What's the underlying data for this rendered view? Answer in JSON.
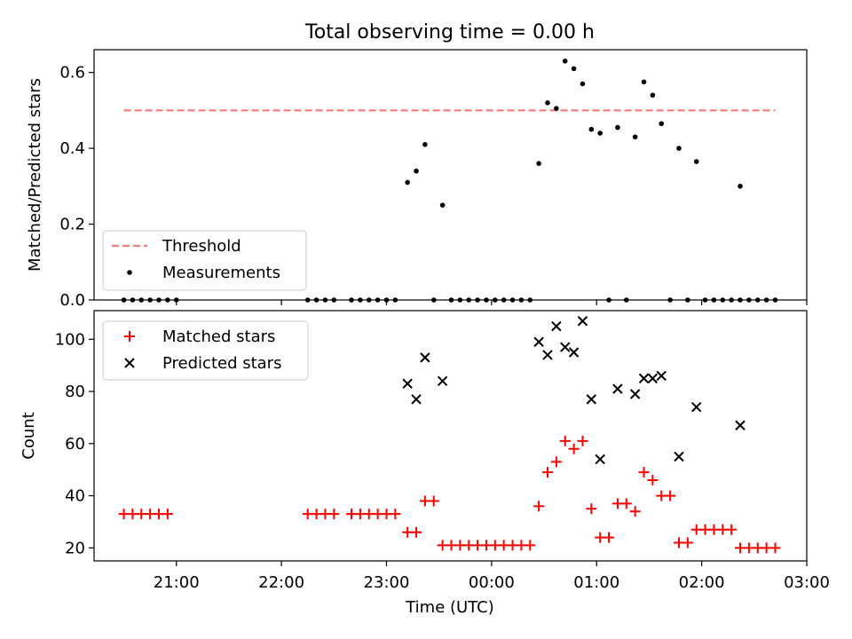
{
  "title": "Total observing time = 0.00 h",
  "chart_data": [
    {
      "type": "scatter",
      "ylabel": "Matched/Predicted stars",
      "xlabel": "",
      "ylim": [
        0,
        0.66
      ],
      "yticks": [
        0.0,
        0.2,
        0.4,
        0.6
      ],
      "ytick_labels": [
        "0.0",
        "0.2",
        "0.4",
        "0.6"
      ],
      "xlim": [
        "20:13",
        "03:00"
      ],
      "grid": false,
      "legend_position": "lower-left",
      "legend": [
        {
          "label": "Threshold",
          "kind": "dashed-line",
          "color": "#f08080"
        },
        {
          "label": "Measurements",
          "kind": "dot",
          "color": "#000000"
        }
      ],
      "threshold": {
        "y": 0.5,
        "x_start": "20:30",
        "x_end": "02:42",
        "color": "#f08080"
      },
      "series": [
        {
          "name": "Measurements",
          "color": "#000000",
          "points": [
            {
              "x": "20:30",
              "y": 0
            },
            {
              "x": "20:35",
              "y": 0
            },
            {
              "x": "20:40",
              "y": 0
            },
            {
              "x": "20:45",
              "y": 0
            },
            {
              "x": "20:50",
              "y": 0
            },
            {
              "x": "20:55",
              "y": 0
            },
            {
              "x": "21:00",
              "y": 0
            },
            {
              "x": "22:15",
              "y": 0
            },
            {
              "x": "22:20",
              "y": 0
            },
            {
              "x": "22:25",
              "y": 0
            },
            {
              "x": "22:30",
              "y": 0
            },
            {
              "x": "22:40",
              "y": 0
            },
            {
              "x": "22:45",
              "y": 0
            },
            {
              "x": "22:50",
              "y": 0
            },
            {
              "x": "22:55",
              "y": 0
            },
            {
              "x": "23:00",
              "y": 0
            },
            {
              "x": "23:05",
              "y": 0
            },
            {
              "x": "23:12",
              "y": 0.31
            },
            {
              "x": "23:17",
              "y": 0.34
            },
            {
              "x": "23:22",
              "y": 0.41
            },
            {
              "x": "23:27",
              "y": 0
            },
            {
              "x": "23:32",
              "y": 0.25
            },
            {
              "x": "23:37",
              "y": 0
            },
            {
              "x": "23:42",
              "y": 0
            },
            {
              "x": "23:47",
              "y": 0
            },
            {
              "x": "23:52",
              "y": 0
            },
            {
              "x": "23:57",
              "y": 0
            },
            {
              "x": "00:02",
              "y": 0
            },
            {
              "x": "00:07",
              "y": 0
            },
            {
              "x": "00:12",
              "y": 0
            },
            {
              "x": "00:17",
              "y": 0
            },
            {
              "x": "00:22",
              "y": 0
            },
            {
              "x": "00:27",
              "y": 0.36
            },
            {
              "x": "00:32",
              "y": 0.52
            },
            {
              "x": "00:37",
              "y": 0.505
            },
            {
              "x": "00:42",
              "y": 0.63
            },
            {
              "x": "00:47",
              "y": 0.61
            },
            {
              "x": "00:52",
              "y": 0.57
            },
            {
              "x": "00:57",
              "y": 0.45
            },
            {
              "x": "01:02",
              "y": 0.44
            },
            {
              "x": "01:07",
              "y": 0
            },
            {
              "x": "01:12",
              "y": 0.455
            },
            {
              "x": "01:17",
              "y": 0
            },
            {
              "x": "01:22",
              "y": 0.43
            },
            {
              "x": "01:27",
              "y": 0.575
            },
            {
              "x": "01:32",
              "y": 0.54
            },
            {
              "x": "01:37",
              "y": 0.465
            },
            {
              "x": "01:42",
              "y": 0
            },
            {
              "x": "01:47",
              "y": 0.4
            },
            {
              "x": "01:52",
              "y": 0
            },
            {
              "x": "01:57",
              "y": 0.365
            },
            {
              "x": "02:02",
              "y": 0
            },
            {
              "x": "02:07",
              "y": 0
            },
            {
              "x": "02:12",
              "y": 0
            },
            {
              "x": "02:17",
              "y": 0
            },
            {
              "x": "02:22",
              "y": 0
            },
            {
              "x": "02:22",
              "y": 0.3
            },
            {
              "x": "02:27",
              "y": 0
            },
            {
              "x": "02:32",
              "y": 0
            },
            {
              "x": "02:37",
              "y": 0
            },
            {
              "x": "02:42",
              "y": 0
            }
          ]
        }
      ]
    },
    {
      "type": "scatter",
      "ylabel": "Count",
      "xlabel": "Time (UTC)",
      "ylim": [
        15,
        111
      ],
      "yticks": [
        20,
        40,
        60,
        80,
        100
      ],
      "ytick_labels": [
        "20",
        "40",
        "60",
        "80",
        "100"
      ],
      "xlim": [
        "20:13",
        "03:00"
      ],
      "xticks": [
        "21:00",
        "22:00",
        "23:00",
        "00:00",
        "01:00",
        "02:00",
        "03:00"
      ],
      "xtick_labels": [
        "21:00",
        "22:00",
        "23:00",
        "00:00",
        "01:00",
        "02:00",
        "03:00"
      ],
      "grid": false,
      "legend_position": "upper-left",
      "legend": [
        {
          "label": "Matched stars",
          "kind": "plus",
          "color": "#ff0000"
        },
        {
          "label": "Predicted stars",
          "kind": "x",
          "color": "#000000"
        }
      ],
      "series": [
        {
          "name": "Matched stars",
          "color": "#ff0000",
          "points": [
            {
              "x": "20:30",
              "y": 33
            },
            {
              "x": "20:35",
              "y": 33
            },
            {
              "x": "20:40",
              "y": 33
            },
            {
              "x": "20:45",
              "y": 33
            },
            {
              "x": "20:50",
              "y": 33
            },
            {
              "x": "20:55",
              "y": 33
            },
            {
              "x": "22:15",
              "y": 33
            },
            {
              "x": "22:20",
              "y": 33
            },
            {
              "x": "22:25",
              "y": 33
            },
            {
              "x": "22:30",
              "y": 33
            },
            {
              "x": "22:40",
              "y": 33
            },
            {
              "x": "22:45",
              "y": 33
            },
            {
              "x": "22:50",
              "y": 33
            },
            {
              "x": "22:55",
              "y": 33
            },
            {
              "x": "23:00",
              "y": 33
            },
            {
              "x": "23:05",
              "y": 33
            },
            {
              "x": "23:12",
              "y": 26
            },
            {
              "x": "23:17",
              "y": 26
            },
            {
              "x": "23:22",
              "y": 38
            },
            {
              "x": "23:27",
              "y": 38
            },
            {
              "x": "23:32",
              "y": 21
            },
            {
              "x": "23:37",
              "y": 21
            },
            {
              "x": "23:42",
              "y": 21
            },
            {
              "x": "23:47",
              "y": 21
            },
            {
              "x": "23:52",
              "y": 21
            },
            {
              "x": "23:57",
              "y": 21
            },
            {
              "x": "00:02",
              "y": 21
            },
            {
              "x": "00:07",
              "y": 21
            },
            {
              "x": "00:12",
              "y": 21
            },
            {
              "x": "00:17",
              "y": 21
            },
            {
              "x": "00:22",
              "y": 21
            },
            {
              "x": "00:27",
              "y": 36
            },
            {
              "x": "00:32",
              "y": 49
            },
            {
              "x": "00:37",
              "y": 53
            },
            {
              "x": "00:42",
              "y": 61
            },
            {
              "x": "00:47",
              "y": 58
            },
            {
              "x": "00:52",
              "y": 61
            },
            {
              "x": "00:57",
              "y": 35
            },
            {
              "x": "01:02",
              "y": 24
            },
            {
              "x": "01:07",
              "y": 24
            },
            {
              "x": "01:12",
              "y": 37
            },
            {
              "x": "01:17",
              "y": 37
            },
            {
              "x": "01:22",
              "y": 34
            },
            {
              "x": "01:27",
              "y": 49
            },
            {
              "x": "01:32",
              "y": 46
            },
            {
              "x": "01:37",
              "y": 40
            },
            {
              "x": "01:42",
              "y": 40
            },
            {
              "x": "01:47",
              "y": 22
            },
            {
              "x": "01:52",
              "y": 22
            },
            {
              "x": "01:57",
              "y": 27
            },
            {
              "x": "02:02",
              "y": 27
            },
            {
              "x": "02:07",
              "y": 27
            },
            {
              "x": "02:12",
              "y": 27
            },
            {
              "x": "02:17",
              "y": 27
            },
            {
              "x": "02:22",
              "y": 20
            },
            {
              "x": "02:27",
              "y": 20
            },
            {
              "x": "02:32",
              "y": 20
            },
            {
              "x": "02:37",
              "y": 20
            },
            {
              "x": "02:42",
              "y": 20
            }
          ]
        },
        {
          "name": "Predicted stars",
          "color": "#000000",
          "points": [
            {
              "x": "23:12",
              "y": 83
            },
            {
              "x": "23:17",
              "y": 77
            },
            {
              "x": "23:22",
              "y": 93
            },
            {
              "x": "23:32",
              "y": 84
            },
            {
              "x": "00:27",
              "y": 99
            },
            {
              "x": "00:32",
              "y": 94
            },
            {
              "x": "00:37",
              "y": 105
            },
            {
              "x": "00:42",
              "y": 97
            },
            {
              "x": "00:47",
              "y": 95
            },
            {
              "x": "00:52",
              "y": 107
            },
            {
              "x": "00:57",
              "y": 77
            },
            {
              "x": "01:02",
              "y": 54
            },
            {
              "x": "01:12",
              "y": 81
            },
            {
              "x": "01:22",
              "y": 79
            },
            {
              "x": "01:27",
              "y": 85
            },
            {
              "x": "01:32",
              "y": 85
            },
            {
              "x": "01:37",
              "y": 86
            },
            {
              "x": "01:47",
              "y": 55
            },
            {
              "x": "01:57",
              "y": 74
            },
            {
              "x": "02:22",
              "y": 67
            }
          ]
        }
      ]
    }
  ]
}
